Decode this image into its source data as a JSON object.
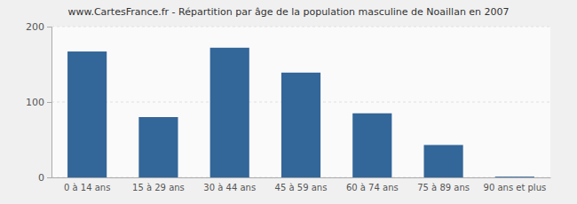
{
  "chart_data": {
    "type": "bar",
    "title": "www.CartesFrance.fr - Répartition par âge de la population masculine de Noaillan en 2007",
    "categories": [
      "0 à 14 ans",
      "15 à 29 ans",
      "30 à 44 ans",
      "45 à 59 ans",
      "60 à 74 ans",
      "75 à 89 ans",
      "90 ans et plus"
    ],
    "values": [
      167,
      80,
      172,
      139,
      85,
      43,
      1
    ],
    "color": "#336699",
    "ylim": [
      0,
      200
    ],
    "yticks": [
      0,
      100,
      200
    ],
    "grid": true
  }
}
